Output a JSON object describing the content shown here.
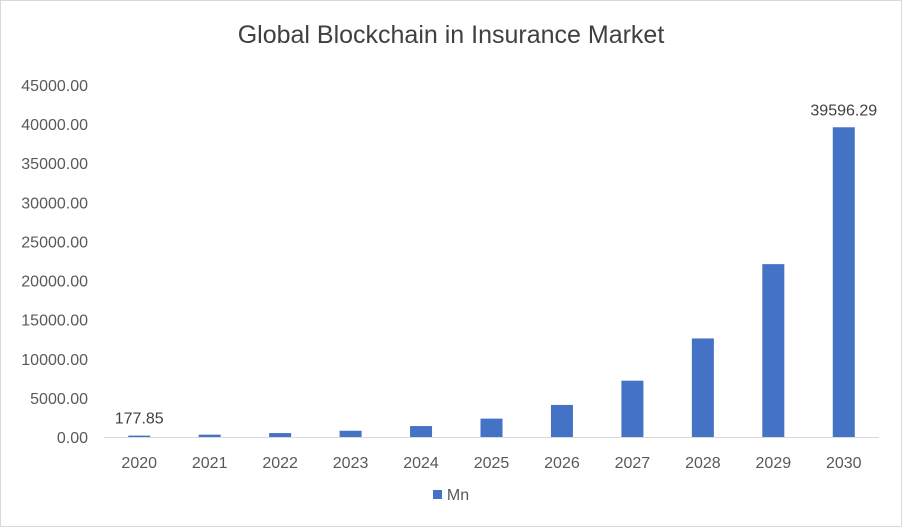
{
  "chart_data": {
    "type": "bar",
    "title": "Global Blockchain in Insurance Market",
    "categories": [
      "2020",
      "2021",
      "2022",
      "2023",
      "2024",
      "2025",
      "2026",
      "2027",
      "2028",
      "2029",
      "2030"
    ],
    "series": [
      {
        "name": "Mn",
        "values": [
          177.85,
          300,
          500,
          800,
          1400,
          2350,
          4100,
          7200,
          12600,
          22100,
          39596.29
        ],
        "color": "#4472c4"
      }
    ],
    "data_labels": [
      {
        "index": 0,
        "text": "177.85"
      },
      {
        "index": 10,
        "text": "39596.29"
      }
    ],
    "yticks": [
      "0.00",
      "5000.00",
      "10000.00",
      "15000.00",
      "20000.00",
      "25000.00",
      "30000.00",
      "35000.00",
      "40000.00",
      "45000.00"
    ],
    "ylim": [
      0,
      45000
    ],
    "ystep": 5000,
    "grid": false,
    "legend_position": "bottom"
  }
}
